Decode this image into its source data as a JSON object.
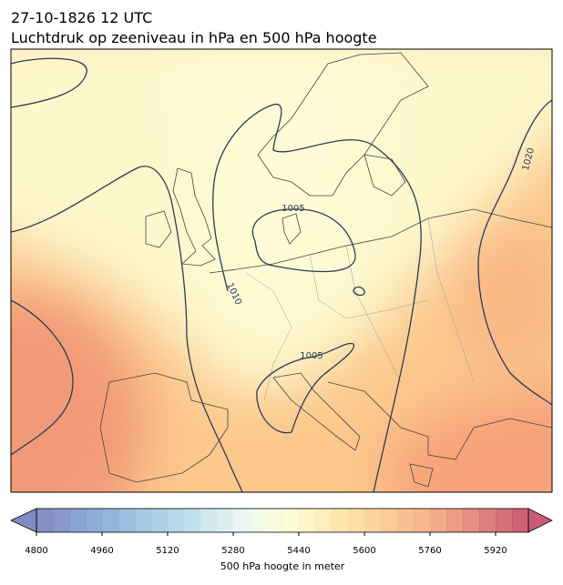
{
  "header": {
    "date": "27-10-1826 12 UTC",
    "title": "Luchtdruk op zeeniveau in hPa en 500 hPa hoogte"
  },
  "isobar_labels": [
    "1005",
    "1010",
    "1005",
    "1020"
  ],
  "colorbar": {
    "label": "500 hPa hoogte in meter",
    "range": [
      4800,
      6000
    ],
    "step": 40,
    "ticks": [
      4800,
      4960,
      5120,
      5280,
      5440,
      5600,
      5760,
      5920
    ]
  }
}
